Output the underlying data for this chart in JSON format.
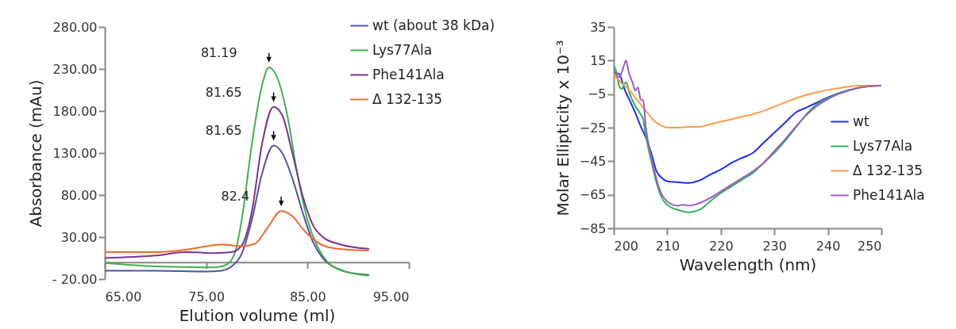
{
  "chart_data": [
    {
      "type": "line",
      "xlabel": "Elution volume (ml)",
      "ylabel": "Absorbance (mAu)",
      "xlim": [
        65,
        95
      ],
      "ylim": [
        -20,
        280
      ],
      "xticks": [
        {
          "value": 65,
          "label": "65.00"
        },
        {
          "value": 75,
          "label": "75.00"
        },
        {
          "value": 85,
          "label": "85.00"
        },
        {
          "value": 95,
          "label": "95.00"
        }
      ],
      "yticks": [
        {
          "value": -20,
          "label": "- 20.00"
        },
        {
          "value": 30,
          "label": "30.00"
        },
        {
          "value": 80,
          "label": "80.00"
        },
        {
          "value": 130,
          "label": "130.00"
        },
        {
          "value": 180,
          "label": "180.00"
        },
        {
          "value": 230,
          "label": "230.00"
        },
        {
          "value": 280,
          "label": "280.00"
        }
      ],
      "grid": false,
      "legend": "top right",
      "line_style": "solid",
      "series": [
        {
          "name": "wt (about 38 kDa)",
          "color": "#4e55a0",
          "x": [
            65,
            70,
            75,
            76.5,
            77.5,
            78.5,
            79.5,
            80.5,
            81.65,
            82.5,
            83.5,
            84.5,
            85.5,
            86.5,
            87.5,
            89,
            91
          ],
          "values": [
            -10,
            -10,
            -11,
            -10,
            -5,
            10,
            50,
            105,
            139,
            130,
            100,
            60,
            25,
            5,
            -5,
            -12,
            -15
          ]
        },
        {
          "name": "Lys77Ala",
          "color": "#3cb44b",
          "x": [
            65,
            70,
            75,
            76,
            77,
            77.8,
            78.5,
            79.5,
            80.5,
            81.19,
            82,
            83,
            84,
            85,
            86,
            87,
            88.5,
            91
          ],
          "values": [
            -1,
            -5,
            -6,
            -6,
            -3,
            10,
            50,
            140,
            210,
            232,
            220,
            175,
            105,
            50,
            18,
            0,
            -10,
            -16
          ]
        },
        {
          "name": "Phe141Ala",
          "color": "#7b3294",
          "x": [
            65,
            70,
            73,
            76,
            77.5,
            78.5,
            79.5,
            80.5,
            81.65,
            82.5,
            83.5,
            84.5,
            85.5,
            86.5,
            88,
            91
          ],
          "values": [
            5,
            8,
            12,
            11,
            12,
            20,
            60,
            140,
            185,
            175,
            130,
            80,
            45,
            30,
            22,
            16
          ]
        },
        {
          "name": "Δ 132-135",
          "color": "#f06a2a",
          "x": [
            65,
            70,
            73,
            76.5,
            78.5,
            79.8,
            81,
            82.4,
            83.5,
            84.5,
            85.5,
            87,
            89,
            91
          ],
          "values": [
            12,
            12,
            15,
            21,
            19,
            22,
            40,
            61,
            55,
            40,
            28,
            18,
            15,
            14
          ]
        }
      ],
      "annotations": [
        {
          "text": "81.19",
          "x": 81.19,
          "y": 232
        },
        {
          "text": "81.65",
          "x": 81.65,
          "y": 185
        },
        {
          "text": "81.65",
          "x": 81.65,
          "y": 139
        },
        {
          "text": "82.4",
          "x": 82.4,
          "y": 61
        }
      ]
    },
    {
      "type": "line",
      "xlabel": "Wavelength (nm)",
      "ylabel": "Molar Ellipticity x 10⁻³",
      "xlim": [
        200,
        250
      ],
      "ylim": [
        -85,
        35
      ],
      "xticks": [
        200,
        210,
        220,
        230,
        240,
        250
      ],
      "yticks": [
        -85,
        -65,
        -45,
        -25,
        -5,
        15,
        35
      ],
      "grid": false,
      "legend": "right",
      "line_style": "solid",
      "series": [
        {
          "name": "wt",
          "color": "#1f2cf5",
          "x": [
            200,
            201,
            202,
            203,
            204,
            205,
            206,
            207,
            208,
            209,
            210,
            212,
            214,
            216,
            218,
            220,
            222,
            224,
            226,
            228,
            230,
            232,
            234,
            236,
            238,
            240,
            242,
            244
          ],
          "values": [
            8,
            7,
            -2,
            -9,
            -16,
            -24,
            -31,
            -40,
            -51,
            -55,
            -57,
            -57.5,
            -58,
            -56.5,
            -53,
            -50,
            -46,
            -43,
            -40,
            -34,
            -28,
            -22,
            -16,
            -13,
            -10,
            -7,
            -4.5,
            -2.5
          ]
        },
        {
          "name": "Lys77Ala",
          "color": "#2db35d",
          "x": [
            200,
            200.5,
            201,
            201.5,
            202,
            202.3,
            203,
            204,
            205,
            205.5,
            206,
            207,
            208,
            209,
            210,
            211,
            212,
            213,
            214,
            215,
            216,
            218,
            220,
            222,
            224,
            226,
            228,
            230,
            232,
            234,
            236,
            238,
            240,
            242,
            244,
            246,
            248,
            250
          ],
          "values": [
            12,
            8,
            0,
            -2,
            1,
            2,
            -5,
            -12,
            -17,
            -20,
            -30,
            -45,
            -58,
            -67,
            -71,
            -73,
            -74,
            -75,
            -75.5,
            -75,
            -74,
            -69,
            -64,
            -60,
            -56,
            -52,
            -46,
            -40,
            -33,
            -25,
            -17,
            -11,
            -7.5,
            -4.5,
            -2.5,
            -1,
            -0.3,
            0
          ]
        },
        {
          "name": "Δ 132-135",
          "color": "#ff9a4a",
          "x": [
            200,
            201,
            202,
            203,
            204,
            205,
            206,
            207,
            208,
            209,
            210,
            212,
            214,
            216,
            218,
            220,
            222,
            224,
            226,
            228,
            230,
            232,
            234,
            236,
            238,
            240,
            242,
            244,
            246,
            248,
            250
          ],
          "values": [
            7,
            3,
            0,
            -3,
            -7,
            -11,
            -15,
            -19,
            -22,
            -24,
            -25,
            -25,
            -24.5,
            -24.5,
            -23,
            -21.5,
            -20,
            -18.5,
            -17,
            -15,
            -12.5,
            -10,
            -7.5,
            -5.5,
            -4,
            -2.5,
            -1.5,
            -0.5,
            0,
            0,
            0
          ]
        },
        {
          "name": "Phe141Ala",
          "color": "#9b59c6",
          "x": [
            200,
            201,
            201.5,
            202,
            202.3,
            202.8,
            203.5,
            204,
            204.5,
            205,
            205.5,
            206,
            207,
            208,
            209,
            210,
            211,
            212,
            213,
            214,
            215,
            216,
            218,
            220,
            222,
            224,
            226,
            228,
            230,
            232,
            234,
            236,
            238,
            240,
            242,
            244,
            246,
            248,
            250
          ],
          "values": [
            9,
            5,
            8,
            13,
            15,
            8,
            2,
            -3,
            -1,
            -8,
            -9,
            -25,
            -42,
            -56,
            -65,
            -69,
            -71,
            -71.5,
            -71,
            -71.5,
            -71,
            -70,
            -67,
            -63,
            -59,
            -55,
            -51,
            -46,
            -39,
            -32,
            -24.5,
            -17.5,
            -12,
            -8,
            -5,
            -2.8,
            -1.2,
            -0.3,
            0
          ]
        }
      ]
    }
  ]
}
